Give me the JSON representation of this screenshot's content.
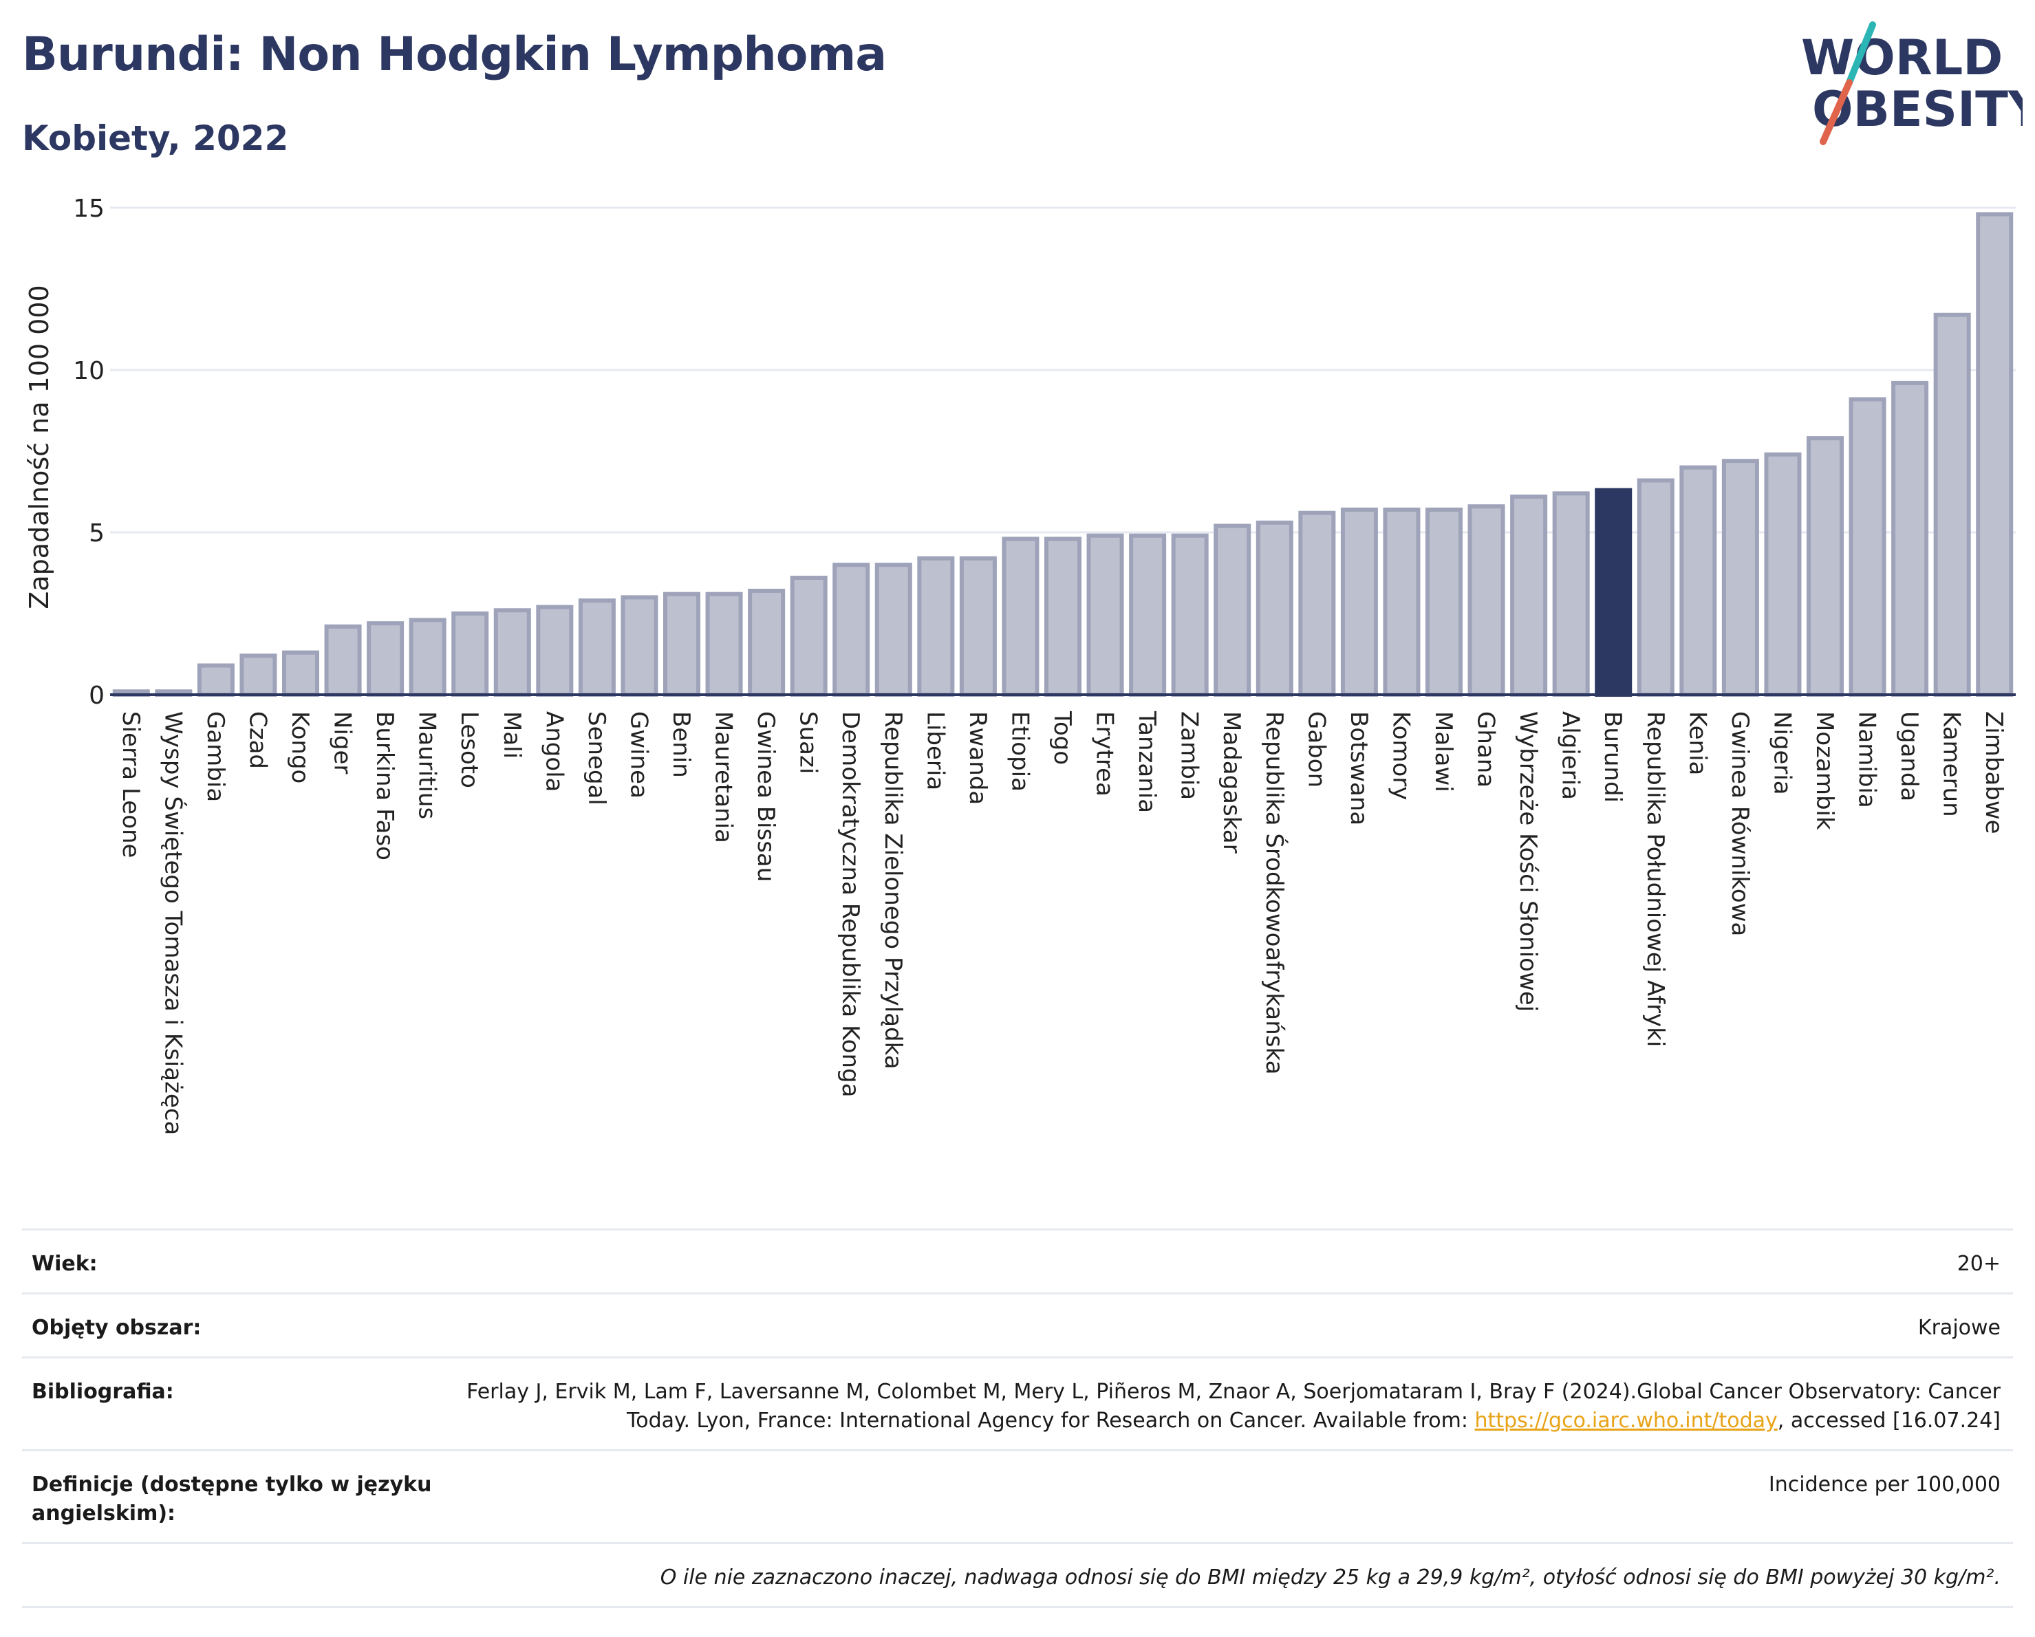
{
  "header": {
    "title": "Burundi: Non Hodgkin Lymphoma",
    "subtitle": "Kobiety, 2022"
  },
  "logo": {
    "line1": "WORLD",
    "line2": "OBESITY",
    "colors": {
      "text": "#2c3762",
      "slash_teal": "#2bb5b5",
      "slash_red": "#e0634c"
    }
  },
  "chart_data": {
    "type": "bar",
    "title": "Burundi: Non Hodgkin Lymphoma",
    "subtitle": "Kobiety, 2022",
    "xlabel": "",
    "ylabel": "Zapadalność na 100 000",
    "ylim": [
      0,
      15.5
    ],
    "yticks": [
      0,
      5,
      10,
      15
    ],
    "grid": true,
    "legend": "none",
    "highlight": "Burundi",
    "colors": {
      "bar": "#bcc0cf",
      "bar_edge": "#9ea3ba",
      "highlight": "#2c3762",
      "axis": "#2c3762",
      "grid": "#e6e9f0"
    },
    "categories": [
      "Sierra Leone",
      "Wyspy Świętego Tomasza i Książęca",
      "Gambia",
      "Czad",
      "Kongo",
      "Niger",
      "Burkina Faso",
      "Mauritius",
      "Lesoto",
      "Mali",
      "Angola",
      "Senegal",
      "Gwinea",
      "Benin",
      "Mauretania",
      "Gwinea Bissau",
      "Suazi",
      "Demokratyczna Republika Konga",
      "Republika Zielonego Przylądka",
      "Liberia",
      "Rwanda",
      "Etiopia",
      "Togo",
      "Erytrea",
      "Tanzania",
      "Zambia",
      "Madagaskar",
      "Republika Środkowoafrykańska",
      "Gabon",
      "Botswana",
      "Komory",
      "Malawi",
      "Ghana",
      "Wybrzeże Kości Słoniowej",
      "Algieria",
      "Burundi",
      "Republika Południowej Afryki",
      "Kenia",
      "Gwinea Równikowa",
      "Nigeria",
      "Mozambik",
      "Namibia",
      "Uganda",
      "Kamerun",
      "Zimbabwe"
    ],
    "values": [
      0.1,
      0.1,
      0.9,
      1.2,
      1.3,
      2.1,
      2.2,
      2.3,
      2.5,
      2.6,
      2.7,
      2.9,
      3.0,
      3.1,
      3.1,
      3.2,
      3.6,
      4.0,
      4.0,
      4.2,
      4.2,
      4.8,
      4.8,
      4.9,
      4.9,
      4.9,
      5.2,
      5.3,
      5.6,
      5.7,
      5.7,
      5.7,
      5.8,
      6.1,
      6.2,
      6.3,
      6.6,
      7.0,
      7.2,
      7.4,
      7.9,
      9.1,
      9.6,
      11.7,
      14.8
    ]
  },
  "info": {
    "rows": [
      {
        "key": "Wiek:",
        "value": "20+"
      },
      {
        "key": "Objęty obszar:",
        "value": "Krajowe"
      },
      {
        "key": "Bibliografia:",
        "value_pre": "Ferlay J, Ervik M, Lam F, Laversanne M, Colombet M, Mery L, Piñeros M, Znaor A, Soerjomataram I, Bray F (2024).Global Cancer Observatory: Cancer Today. Lyon, France: International Agency for Research on Cancer. Available from: ",
        "link": "https://gco.iarc.who.int/today",
        "value_post": ", accessed [16.07.24]"
      },
      {
        "key": "Definicje (dostępne tylko w języku angielskim):",
        "value": "Incidence per 100,000"
      }
    ],
    "note": "O ile nie zaznaczono inaczej, nadwaga odnosi się do BMI między 25 kg a 29,9 kg/m², otyłość odnosi się do BMI powyżej 30 kg/m²."
  }
}
